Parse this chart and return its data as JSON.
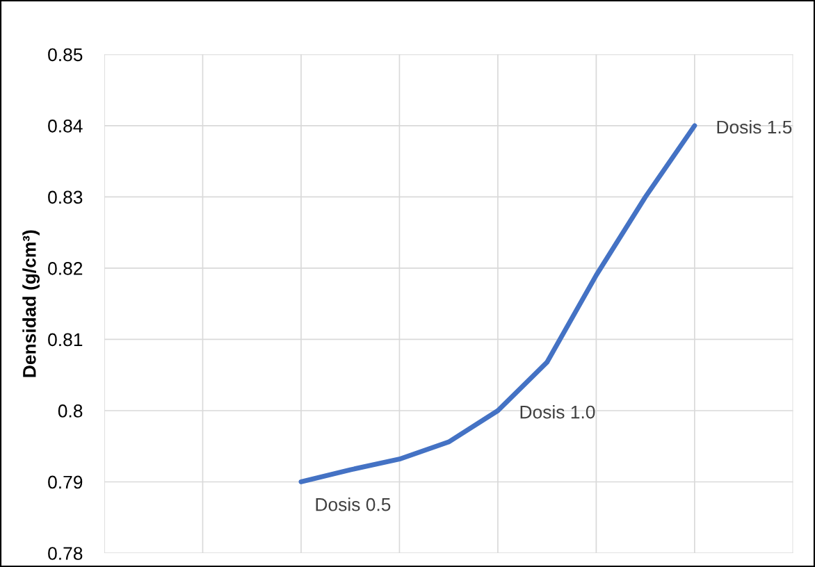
{
  "chart_data": {
    "type": "line",
    "ylabel": "Densidad (g/cm³)",
    "categories": [
      null,
      null,
      null,
      null,
      null,
      null,
      null,
      null,
      null,
      null,
      null,
      null,
      null,
      null,
      null
    ],
    "series": [
      {
        "color": "#4472c4",
        "values": [
          null,
          null,
          null,
          null,
          0.79,
          0.7917,
          0.7932,
          0.7956,
          0.8,
          0.8068,
          0.819,
          0.83,
          0.84,
          null,
          null
        ]
      }
    ],
    "ylim": [
      0.78,
      0.85
    ],
    "yticks": [
      0.78,
      0.79,
      0.8,
      0.81,
      0.82,
      0.83,
      0.84,
      0.85
    ],
    "tick_labels": "y",
    "grid": true,
    "marker": "none",
    "line_style": "solid",
    "annotations": [
      "Dosis 0.5",
      "Dosis 1.0",
      "Dosis 1.5"
    ]
  }
}
